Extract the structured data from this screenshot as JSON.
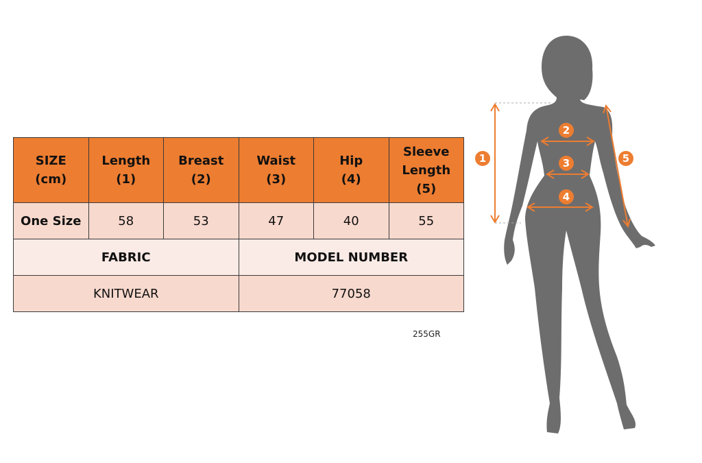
{
  "table": {
    "headers": [
      [
        "SIZE",
        "(cm)"
      ],
      [
        "Length",
        "(1)"
      ],
      [
        "Breast",
        "(2)"
      ],
      [
        "Waist",
        "(3)"
      ],
      [
        "Hip",
        "(4)"
      ],
      [
        "Sleeve Length",
        "(5)"
      ]
    ],
    "size_row": {
      "label": "One Size",
      "values": [
        "58",
        "53",
        "47",
        "40",
        "55"
      ]
    },
    "fabric_label": "FABRIC",
    "model_label": "MODEL NUMBER",
    "fabric_value": "KNITWEAR",
    "model_value": "77058"
  },
  "code": "255GR",
  "markers": [
    "1",
    "2",
    "3",
    "4",
    "5"
  ],
  "colors": {
    "header": "#ed7d31",
    "row": "#f8d9ce",
    "row_light": "#fbebe6",
    "silhouette": "#6d6d6d",
    "accent": "#ed7d31"
  }
}
